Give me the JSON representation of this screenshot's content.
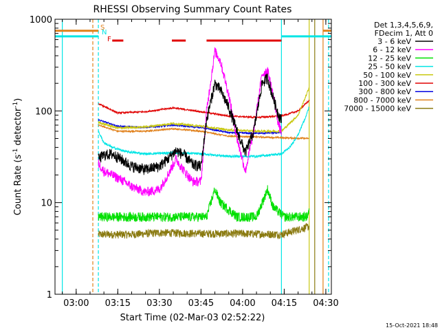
{
  "chart_data": {
    "type": "line",
    "title": "RHESSI Observing Summary Count Rates",
    "xlabel": "Start Time (02-Mar-03 02:52:22)",
    "ylabel_parts": [
      "Count Rate (s",
      "-1",
      " detector",
      "-1",
      ")"
    ],
    "x_scale": "time",
    "y_scale": "log",
    "xlim": [
      "02:52:22",
      "04:32:00"
    ],
    "ylim": [
      1,
      1000
    ],
    "x_ticks": [
      {
        "t": "03:00",
        "label": "03:00"
      },
      {
        "t": "03:15",
        "label": "03:15"
      },
      {
        "t": "03:30",
        "label": "03:30"
      },
      {
        "t": "03:45",
        "label": "03:45"
      },
      {
        "t": "04:00",
        "label": "04:00"
      },
      {
        "t": "04:15",
        "label": "04:15"
      },
      {
        "t": "04:30",
        "label": "04:30"
      }
    ],
    "y_ticks": [
      {
        "v": 1,
        "label": "1"
      },
      {
        "v": 10,
        "label": "10"
      },
      {
        "v": 100,
        "label": "100"
      },
      {
        "v": 1000,
        "label": "1000"
      }
    ],
    "legend": {
      "placement": "top-right",
      "header": [
        "Det 1,3,4,5,6,9,",
        "FDecim 1, Att 0"
      ]
    },
    "flags": [
      {
        "label": "S",
        "color": "#e0801a"
      },
      {
        "label": "N",
        "color": "#00e5e5"
      },
      {
        "label": "F",
        "color": "#e00000"
      }
    ],
    "flare_bars": [
      [
        "03:13:00",
        "03:17:00"
      ],
      [
        "03:34:30",
        "03:39:30"
      ],
      [
        "03:47:00",
        "04:14:00"
      ]
    ],
    "time_markers": [
      {
        "t": "02:55:00",
        "color": "#00e5e5",
        "style": "solid"
      },
      {
        "t": "03:06:00",
        "color": "#e0801a",
        "style": "dashed"
      },
      {
        "t": "03:08:00",
        "color": "#00e5e5",
        "style": "dashed"
      },
      {
        "t": "04:14:00",
        "color": "#00e5e5",
        "style": "solid"
      },
      {
        "t": "04:24:00",
        "color": "#c8c810",
        "style": "solid"
      },
      {
        "t": "04:26:00",
        "color": "#8a7a10",
        "style": "solid"
      },
      {
        "t": "04:29:00",
        "color": "#e0801a",
        "style": "solid"
      },
      {
        "t": "04:31:00",
        "color": "#00e5e5",
        "style": "dashed"
      }
    ],
    "series": [
      {
        "name": "3 - 6 keV",
        "color": "#000000",
        "noise": 0.14,
        "points": [
          [
            "03:08:00",
            30
          ],
          [
            "03:10:00",
            33
          ],
          [
            "03:13:00",
            34
          ],
          [
            "03:16:00",
            30
          ],
          [
            "03:20:00",
            25
          ],
          [
            "03:25:00",
            23
          ],
          [
            "03:30:00",
            25
          ],
          [
            "03:33:00",
            30
          ],
          [
            "03:36:00",
            37
          ],
          [
            "03:39:00",
            33
          ],
          [
            "03:42:00",
            26
          ],
          [
            "03:45:00",
            25
          ],
          [
            "03:47:00",
            80
          ],
          [
            "03:50:00",
            200
          ],
          [
            "03:52:00",
            170
          ],
          [
            "03:55:00",
            110
          ],
          [
            "03:58:00",
            60
          ],
          [
            "04:01:00",
            35
          ],
          [
            "04:04:00",
            60
          ],
          [
            "04:07:00",
            200
          ],
          [
            "04:09:00",
            230
          ],
          [
            "04:11:00",
            140
          ],
          [
            "04:13:00",
            90
          ],
          [
            "04:14:00",
            80
          ]
        ]
      },
      {
        "name": "6 - 12 keV",
        "color": "#ff00ff",
        "noise": 0.12,
        "points": [
          [
            "03:08:00",
            27
          ],
          [
            "03:10:00",
            22
          ],
          [
            "03:13:00",
            20
          ],
          [
            "03:16:00",
            18
          ],
          [
            "03:20:00",
            15
          ],
          [
            "03:25:00",
            13
          ],
          [
            "03:30:00",
            14
          ],
          [
            "03:33:00",
            20
          ],
          [
            "03:36:00",
            30
          ],
          [
            "03:39:00",
            22
          ],
          [
            "03:42:00",
            17
          ],
          [
            "03:45:00",
            17
          ],
          [
            "03:47:00",
            100
          ],
          [
            "03:50:00",
            450
          ],
          [
            "03:52:00",
            350
          ],
          [
            "03:55:00",
            150
          ],
          [
            "03:58:00",
            50
          ],
          [
            "04:01:00",
            22
          ],
          [
            "04:04:00",
            60
          ],
          [
            "04:07:00",
            250
          ],
          [
            "04:09:00",
            280
          ],
          [
            "04:11:00",
            150
          ],
          [
            "04:13:00",
            70
          ],
          [
            "04:14:00",
            60
          ]
        ]
      },
      {
        "name": "12 - 25 keV",
        "color": "#00e000",
        "noise": 0.12,
        "points": [
          [
            "03:08:00",
            7
          ],
          [
            "03:20:00",
            7
          ],
          [
            "03:30:00",
            7
          ],
          [
            "03:40:00",
            7
          ],
          [
            "03:47:00",
            7
          ],
          [
            "03:50:00",
            14
          ],
          [
            "03:52:00",
            10
          ],
          [
            "03:58:00",
            7
          ],
          [
            "04:05:00",
            7
          ],
          [
            "04:09:00",
            14
          ],
          [
            "04:11:00",
            9
          ],
          [
            "04:15:00",
            7
          ],
          [
            "04:23:00",
            7
          ],
          [
            "04:24:00",
            8
          ]
        ]
      },
      {
        "name": "25 - 50 keV",
        "color": "#00e5e5",
        "noise": 0.03,
        "points": [
          [
            "03:08:00",
            60
          ],
          [
            "03:10:00",
            45
          ],
          [
            "03:13:00",
            40
          ],
          [
            "03:18:00",
            36
          ],
          [
            "03:25:00",
            34
          ],
          [
            "03:35:00",
            35
          ],
          [
            "03:45:00",
            34
          ],
          [
            "03:55:00",
            32
          ],
          [
            "04:05:00",
            32
          ],
          [
            "04:14:00",
            34
          ],
          [
            "04:17:00",
            40
          ],
          [
            "04:20:00",
            55
          ],
          [
            "04:23:00",
            90
          ],
          [
            "04:24:00",
            110
          ]
        ]
      },
      {
        "name": "50 - 100 keV",
        "color": "#c8c810",
        "noise": 0.03,
        "points": [
          [
            "03:08:00",
            75
          ],
          [
            "03:15:00",
            65
          ],
          [
            "03:25:00",
            67
          ],
          [
            "03:35:00",
            73
          ],
          [
            "03:45:00",
            68
          ],
          [
            "03:55:00",
            62
          ],
          [
            "04:05:00",
            60
          ],
          [
            "04:14:00",
            60
          ],
          [
            "04:20:00",
            90
          ],
          [
            "04:23:00",
            150
          ],
          [
            "04:24:00",
            180
          ]
        ]
      },
      {
        "name": "100 - 300 keV",
        "color": "#e00000",
        "noise": 0.02,
        "points": [
          [
            "03:08:00",
            120
          ],
          [
            "03:15:00",
            95
          ],
          [
            "03:25:00",
            98
          ],
          [
            "03:35:00",
            108
          ],
          [
            "03:45:00",
            98
          ],
          [
            "03:55:00",
            88
          ],
          [
            "04:05:00",
            85
          ],
          [
            "04:14:00",
            88
          ],
          [
            "04:20:00",
            100
          ],
          [
            "04:24:00",
            130
          ]
        ]
      },
      {
        "name": "300 - 800 keV",
        "color": "#0000e0",
        "noise": 0.02,
        "points": [
          [
            "03:08:00",
            80
          ],
          [
            "03:15:00",
            68
          ],
          [
            "03:25:00",
            66
          ],
          [
            "03:35:00",
            70
          ],
          [
            "03:45:00",
            66
          ],
          [
            "03:55:00",
            58
          ],
          [
            "04:05:00",
            57
          ],
          [
            "04:14:00",
            58
          ]
        ]
      },
      {
        "name": "800 - 7000 keV",
        "color": "#e0801a",
        "noise": 0.02,
        "points": [
          [
            "03:08:00",
            70
          ],
          [
            "03:15:00",
            60
          ],
          [
            "03:25:00",
            60
          ],
          [
            "03:35:00",
            64
          ],
          [
            "03:45:00",
            60
          ],
          [
            "03:55:00",
            53
          ],
          [
            "04:05:00",
            52
          ],
          [
            "04:14:00",
            51
          ],
          [
            "04:24:00",
            50
          ]
        ]
      },
      {
        "name": "7000 - 15000 keV",
        "color": "#8a7a10",
        "noise": 0.1,
        "points": [
          [
            "03:08:00",
            4.5
          ],
          [
            "03:20:00",
            4.5
          ],
          [
            "03:30:00",
            4.7
          ],
          [
            "03:45:00",
            4.6
          ],
          [
            "04:00:00",
            4.6
          ],
          [
            "04:14:00",
            4.5
          ],
          [
            "04:24:00",
            5.5
          ]
        ]
      }
    ],
    "pre_series": [
      {
        "name": "25 - 50 keV",
        "color": "#00e5e5",
        "points": [
          [
            "02:52:22",
            650
          ],
          [
            "03:08:00",
            650
          ]
        ]
      },
      {
        "name": "800 - 7000 keV",
        "color": "#e0801a",
        "points": [
          [
            "02:52:22",
            750
          ],
          [
            "03:08:00",
            750
          ]
        ]
      }
    ],
    "post_series": [
      {
        "name": "25 - 50 keV",
        "color": "#00e5e5",
        "points": [
          [
            "04:14:00",
            650
          ],
          [
            "04:32:00",
            650
          ]
        ]
      },
      {
        "name": "800 - 7000 keV",
        "color": "#e0801a",
        "points": [
          [
            "04:29:00",
            750
          ],
          [
            "04:32:00",
            750
          ]
        ]
      }
    ]
  },
  "footer": {
    "timestamp": "15-Oct-2021 18:48"
  }
}
